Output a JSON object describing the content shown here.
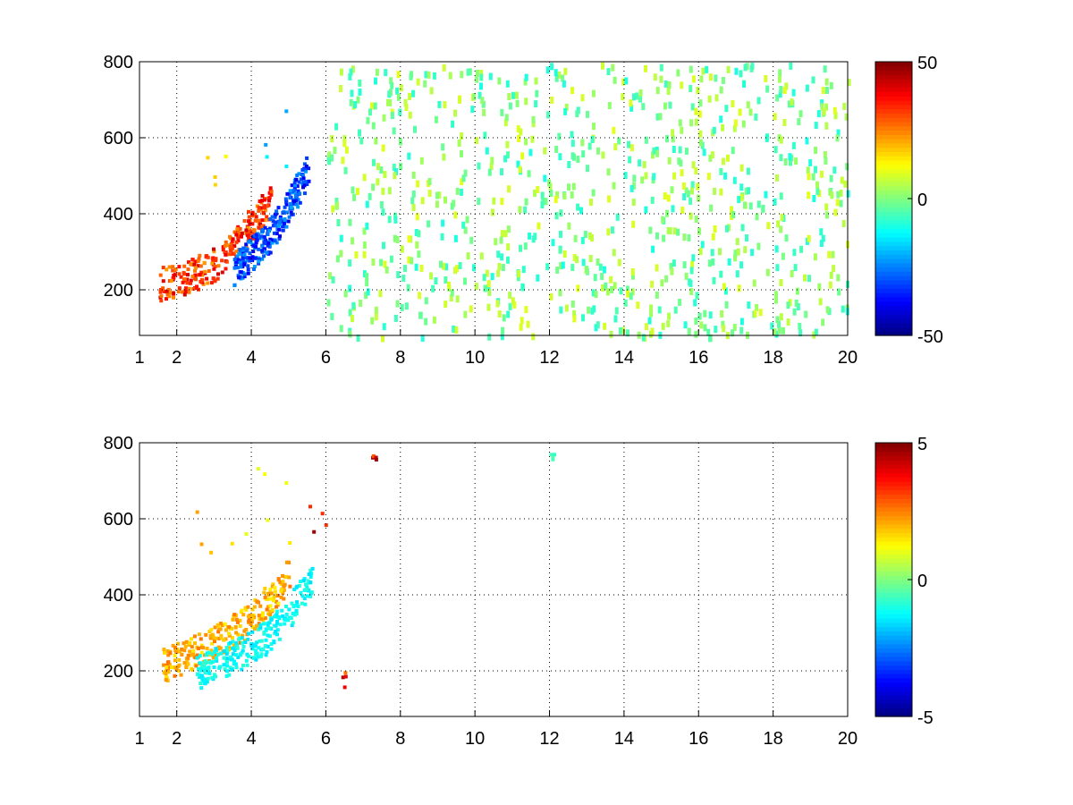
{
  "figure": {
    "background": "#ffffff"
  },
  "chart_data": [
    {
      "type": "heatmap",
      "title": "",
      "xlabel": "",
      "ylabel": "",
      "xlim": [
        1,
        20
      ],
      "ylim": [
        80,
        800
      ],
      "x_ticks": [
        1,
        2,
        4,
        6,
        8,
        10,
        12,
        14,
        16,
        18,
        20
      ],
      "y_ticks": [
        200,
        400,
        600,
        800
      ],
      "grid": true,
      "colormap": "jet",
      "colorbar": {
        "min": -50,
        "max": 50,
        "ticks": [
          -50,
          0,
          50
        ]
      },
      "features": [
        {
          "kind": "ridge",
          "x": [
            1.5,
            2.2,
            3.0,
            3.5,
            4.0,
            4.5
          ],
          "y": [
            220,
            235,
            270,
            320,
            380,
            440
          ],
          "value": 40
        },
        {
          "kind": "ridge",
          "x": [
            3.5,
            4.0,
            4.5,
            5.0,
            5.5
          ],
          "y": [
            260,
            300,
            350,
            430,
            520
          ],
          "value": -38
        },
        {
          "kind": "patch",
          "x": [
            2.4,
            3.4
          ],
          "y": [
            480,
            560
          ],
          "value": 20
        },
        {
          "kind": "patch",
          "x": [
            4.2,
            5.2
          ],
          "y": [
            520,
            760
          ],
          "value": -20
        },
        {
          "kind": "noise",
          "x": [
            6,
            20
          ],
          "y": [
            80,
            800
          ],
          "value_range": [
            -10,
            10
          ]
        }
      ]
    },
    {
      "type": "heatmap",
      "title": "",
      "xlabel": "",
      "ylabel": "",
      "xlim": [
        1,
        20
      ],
      "ylim": [
        80,
        800
      ],
      "x_ticks": [
        1,
        2,
        4,
        6,
        8,
        10,
        12,
        14,
        16,
        18,
        20
      ],
      "y_ticks": [
        200,
        400,
        600,
        800
      ],
      "grid": true,
      "colormap": "jet",
      "colorbar": {
        "min": -5,
        "max": 5,
        "ticks": [
          -5,
          0,
          5
        ]
      },
      "features": [
        {
          "kind": "ridge",
          "x": [
            1.6,
            2.2,
            3.0,
            3.8,
            4.5,
            5.0
          ],
          "y": [
            220,
            240,
            280,
            330,
            400,
            460
          ],
          "value": 2.5
        },
        {
          "kind": "ridge",
          "x": [
            2.5,
            3.5,
            4.5,
            5.0,
            5.6
          ],
          "y": [
            200,
            240,
            300,
            360,
            450
          ],
          "value": -1.5
        },
        {
          "kind": "patch",
          "x": [
            2.4,
            3.6
          ],
          "y": [
            480,
            640
          ],
          "value": 2.2
        },
        {
          "kind": "patch",
          "x": [
            3.7,
            5.0
          ],
          "y": [
            500,
            800
          ],
          "value": 1.4
        },
        {
          "kind": "patch",
          "x": [
            5.5,
            6.0
          ],
          "y": [
            560,
            640
          ],
          "value": 4.5
        },
        {
          "kind": "patch",
          "x": [
            6.4,
            6.5
          ],
          "y": [
            160,
            200
          ],
          "value": 4.2
        },
        {
          "kind": "patch",
          "x": [
            7.2,
            7.4
          ],
          "y": [
            760,
            770
          ],
          "value": 4.5
        },
        {
          "kind": "patch",
          "x": [
            12.0,
            12.1
          ],
          "y": [
            760,
            790
          ],
          "value": -0.8
        }
      ]
    }
  ]
}
